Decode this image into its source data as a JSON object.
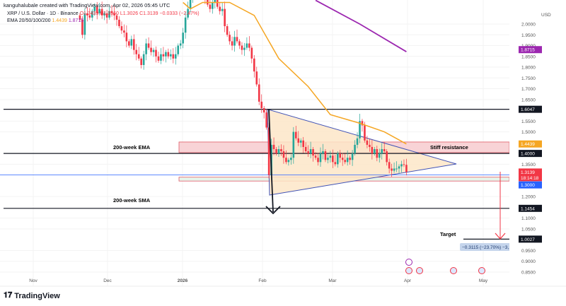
{
  "header": {
    "credit": "kanguhalubale created with TradingView.com, Apr 02, 2026 05:45 UTC",
    "symbol": "XRP / U.S. Dollar · 1D · Binance",
    "ohlc": {
      "open": "O1.3439",
      "high": "H1.3560",
      "low": "L1.3026",
      "close": "C1.3139",
      "change": "−0.0333 (−2.47%)"
    },
    "ema_label": "EMA 20/50/100/200",
    "ema_values": [
      "1.4439",
      "1.8715"
    ]
  },
  "colors": {
    "up": "#26a69a",
    "down": "#f23645",
    "ema50": "#f5a623",
    "ema200": "#9c27b0",
    "triangle_line": "#3f51b5",
    "triangle_fill": "#fde6c8",
    "zone_fill": "#f8d3d6",
    "zone_border": "#e05a66",
    "support_blue": "#2962ff"
  },
  "chart_data": {
    "type": "candlestick",
    "symbol": "XRPUSD",
    "interval": "1D",
    "y_axis_unit": "USD",
    "ylim": [
      0.82,
      2.11
    ],
    "y_ticks": [
      "2.0000",
      "1.9500",
      "1.9000",
      "1.8500",
      "1.8000",
      "1.7500",
      "1.7000",
      "1.6500",
      "1.5500",
      "1.5000",
      "1.3500",
      "1.2000",
      "1.1000",
      "1.0500",
      "0.9500",
      "0.9000",
      "0.8500"
    ],
    "x_ticks": [
      "Nov",
      "Dec",
      "2026",
      "Feb",
      "Mar",
      "Apr",
      "May"
    ],
    "first_date": "2025-11-20",
    "closes": [
      2.02,
      1.95,
      2.05,
      2.04,
      2.03,
      2.06,
      2.08,
      2.05,
      2.07,
      2.04,
      2.05,
      2.03,
      2.06,
      2.05,
      2.04,
      2.02,
      1.99,
      1.97,
      1.96,
      1.92,
      1.9,
      1.93,
      1.88,
      1.86,
      1.84,
      1.81,
      1.86,
      1.91,
      1.89,
      1.87,
      1.88,
      1.85,
      1.83,
      1.86,
      1.85,
      1.87,
      1.85,
      1.86,
      1.84,
      1.86,
      1.9,
      1.91,
      1.96,
      2.03,
      2.07,
      2.12,
      2.25,
      2.35,
      2.3,
      2.22,
      2.18,
      2.12,
      2.09,
      2.07,
      2.1,
      2.15,
      2.08,
      2.06,
      2.07,
      1.99,
      1.95,
      1.92,
      1.9,
      1.94,
      1.92,
      1.9,
      1.88,
      1.89,
      1.91,
      1.89,
      1.84,
      1.78,
      1.72,
      1.64,
      1.61,
      1.59,
      1.52,
      1.3,
      1.44,
      1.42,
      1.4,
      1.42,
      1.41,
      1.38,
      1.36,
      1.37,
      1.38,
      1.5,
      1.47,
      1.45,
      1.46,
      1.43,
      1.41,
      1.4,
      1.42,
      1.39,
      1.38,
      1.36,
      1.4,
      1.41,
      1.37,
      1.38,
      1.39,
      1.36,
      1.35,
      1.4,
      1.38,
      1.37,
      1.36,
      1.38,
      1.37,
      1.4,
      1.44,
      1.47,
      1.55,
      1.53,
      1.46,
      1.44,
      1.43,
      1.4,
      1.42,
      1.38,
      1.4,
      1.42,
      1.41,
      1.36,
      1.33,
      1.32,
      1.33,
      1.33,
      1.34,
      1.35,
      1.3472,
      1.3139
    ],
    "ema50_points": [
      [
        "2026-01-01",
        2.1
      ],
      [
        "2026-01-04",
        2.07
      ],
      [
        "2026-01-09",
        2.1
      ],
      [
        "2026-01-20",
        2.1
      ],
      [
        "2026-01-30",
        2.04
      ],
      [
        "2026-02-09",
        1.84
      ],
      [
        "2026-02-21",
        1.71
      ],
      [
        "2026-03-02",
        1.58
      ],
      [
        "2026-03-14",
        1.54
      ],
      [
        "2026-03-24",
        1.5
      ],
      [
        "2026-04-02",
        1.4439
      ]
    ],
    "ema200_points": [
      [
        "2026-02-24",
        2.11
      ],
      [
        "2026-03-14",
        2.0
      ],
      [
        "2026-04-02",
        1.8715
      ]
    ],
    "price_labels": [
      {
        "value": "1.8715",
        "color": "#9c27b0"
      },
      {
        "value": "1.6047",
        "color": "#131722"
      },
      {
        "value": "1.4439",
        "color": "#f5a623"
      },
      {
        "value": "1.4000",
        "color": "#131722"
      },
      {
        "value": "1.3139",
        "color": "#f23645",
        "countdown": "18:14:18"
      },
      {
        "value": "1.3000",
        "color": "#2962ff"
      },
      {
        "value": "1.1454",
        "color": "#131722"
      },
      {
        "value": "1.0027",
        "color": "#131722"
      }
    ],
    "horizontal_levels": [
      1.6047,
      1.4,
      1.1454,
      1.0027,
      1.3
    ],
    "zones": [
      {
        "top": 1.453,
        "bottom": 1.404
      },
      {
        "top": 1.29,
        "bottom": 1.272
      }
    ],
    "annotations": {
      "ema_200w": "200-week EMA",
      "sma_200w": "200-week SMA",
      "resistance": "Stiff resistance",
      "target": "Target",
      "measure": "−0.3115 (−23.70%) −3,115"
    }
  },
  "footer": {
    "brand": "TradingView"
  }
}
